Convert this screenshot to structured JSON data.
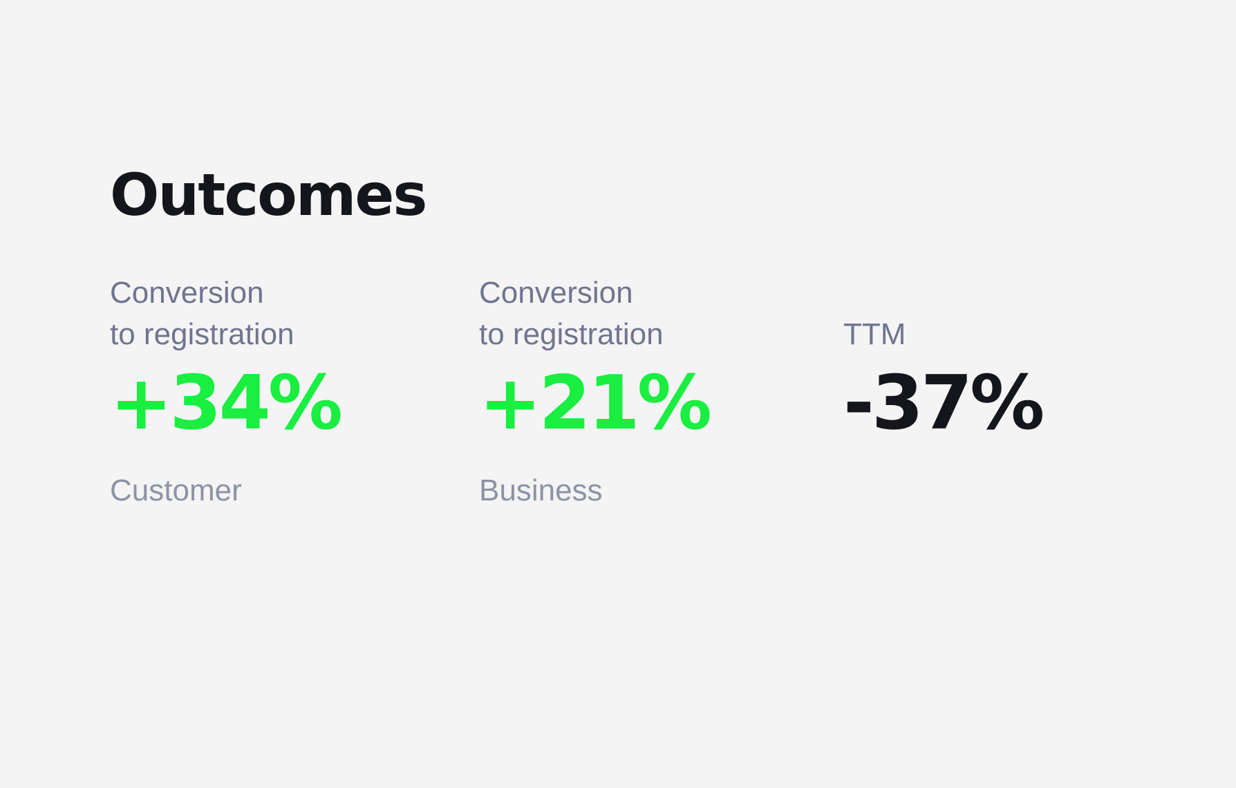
{
  "title": "Outcomes",
  "colors": {
    "background": "#f4f4f4",
    "title": "#14161c",
    "label": "#6f7590",
    "caption": "#8e92a6",
    "positive": "#19ee41",
    "neutral_value": "#14161c"
  },
  "metrics": [
    {
      "label_lines": [
        "Conversion",
        "to registration"
      ],
      "value": "+34%",
      "caption": "Customer"
    },
    {
      "label_lines": [
        "Conversion",
        "to registration"
      ],
      "value": "+21%",
      "caption": "Business"
    },
    {
      "label_lines": [
        "TTM"
      ],
      "value": "-37%",
      "caption": ""
    }
  ]
}
